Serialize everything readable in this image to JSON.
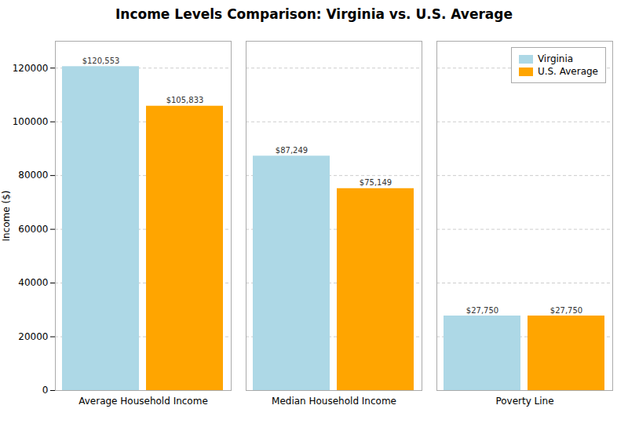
{
  "chart_data": {
    "type": "bar",
    "title": "Income Levels Comparison: Virginia vs. U.S. Average",
    "categories": [
      "Average Household Income",
      "Median Household Income",
      "Poverty Line"
    ],
    "series": [
      {
        "name": "Virginia",
        "color": "#ADD8E6",
        "values": [
          120553,
          87249,
          27750
        ],
        "value_labels": [
          "$120,553",
          "$87,249",
          "$27,750"
        ]
      },
      {
        "name": "U.S. Average",
        "color": "#FFA500",
        "values": [
          105833,
          75149,
          27750
        ],
        "value_labels": [
          "$105,833",
          "$75,149",
          "$27,750"
        ]
      }
    ],
    "ylabel": "Income ($)",
    "ylim": [
      0,
      130000
    ],
    "yticks": [
      0,
      20000,
      40000,
      60000,
      80000,
      100000,
      120000
    ],
    "grid": true,
    "legend": "upper right",
    "data_labels": true
  }
}
